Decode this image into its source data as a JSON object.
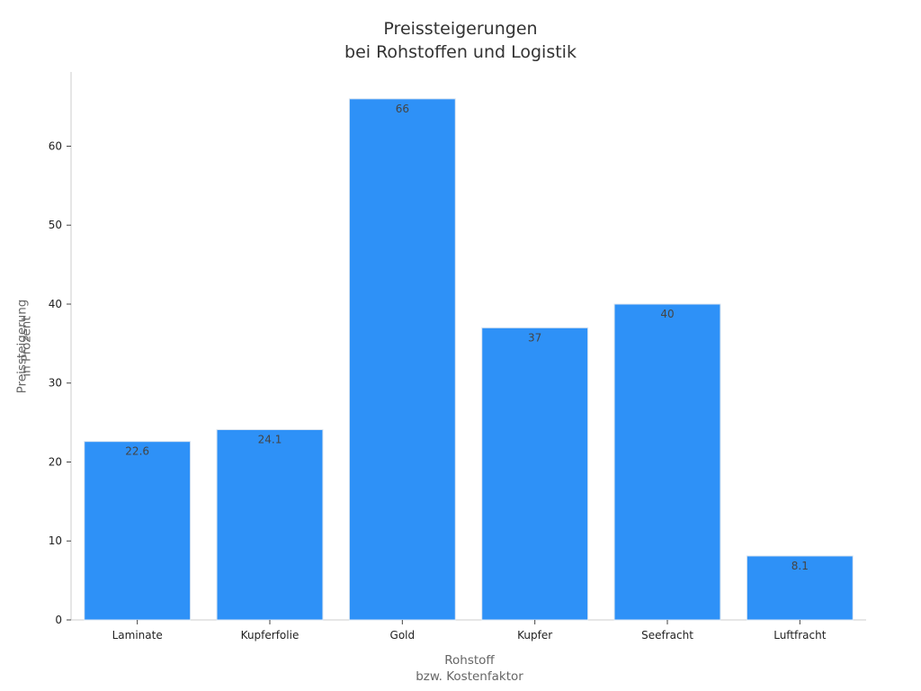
{
  "chart_data": {
    "type": "bar",
    "title": [
      "Preissteigerungen",
      "bei Rohstoffen und Logistik"
    ],
    "xlabel": [
      "Rohstoff",
      "bzw. Kostenfaktor"
    ],
    "ylabel": [
      "Preissteigerung",
      "in Prozent"
    ],
    "categories": [
      "Laminate",
      "Kupferfolie",
      "Gold",
      "Kupfer",
      "Seefracht",
      "Luftfracht"
    ],
    "values": [
      22.6,
      24.1,
      66,
      37,
      40,
      8.1
    ],
    "value_labels": [
      "22.6",
      "24.1",
      "66",
      "37",
      "40",
      "8.1"
    ],
    "ylim": [
      0,
      69.4
    ],
    "yticks": [
      0,
      10,
      20,
      30,
      40,
      50,
      60
    ],
    "grid": false,
    "legend": "none",
    "colors": {
      "bar": "#2e91f7",
      "bar_edge": "#d9e4f0",
      "axis": "#cccccc",
      "tick_text": "#222222",
      "value_text": "#444444",
      "title_text": "#333333",
      "label_text": "#666666"
    }
  }
}
